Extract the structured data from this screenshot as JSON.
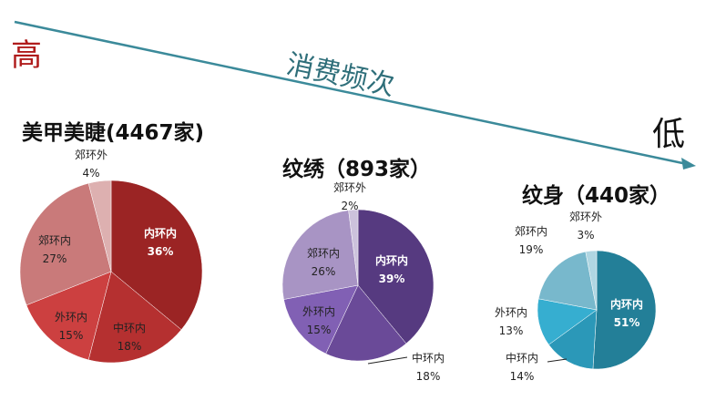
{
  "header": {
    "high_label": "高",
    "low_label": "低",
    "axis_label": "消费频次",
    "arrow_color": "#3b8a9a"
  },
  "charts": [
    {
      "title": "美甲美睫(4467家)",
      "slices": [
        {
          "label": "内环内",
          "pct": "36%",
          "color": "#9b2424"
        },
        {
          "label": "中环内",
          "pct": "18%",
          "color": "#b53030"
        },
        {
          "label": "外环内",
          "pct": "15%",
          "color": "#cc4040"
        },
        {
          "label": "郊环内",
          "pct": "27%",
          "color": "#c97a7a"
        },
        {
          "label": "郊环外",
          "pct": "4%",
          "color": "#ddb0b0"
        }
      ]
    },
    {
      "title": "纹绣（893家）",
      "slices": [
        {
          "label": "内环内",
          "pct": "39%",
          "color": "#563a80"
        },
        {
          "label": "中环内",
          "pct": "18%",
          "color": "#6a4a98"
        },
        {
          "label": "外环内",
          "pct": "15%",
          "color": "#8160b4"
        },
        {
          "label": "郊环内",
          "pct": "26%",
          "color": "#a894c4"
        },
        {
          "label": "郊环外",
          "pct": "2%",
          "color": "#ccc2dc"
        }
      ]
    },
    {
      "title": "纹身（440家）",
      "slices": [
        {
          "label": "内环内",
          "pct": "51%",
          "color": "#237f98"
        },
        {
          "label": "中环内",
          "pct": "14%",
          "color": "#2b98b8"
        },
        {
          "label": "外环内",
          "pct": "13%",
          "color": "#36aed0"
        },
        {
          "label": "郊环内",
          "pct": "19%",
          "color": "#78b8cc"
        },
        {
          "label": "郊环外",
          "pct": "3%",
          "color": "#b0d6e2"
        }
      ]
    }
  ],
  "chart_data": [
    {
      "type": "pie",
      "title": "美甲美睫(4467家)",
      "categories": [
        "内环内",
        "中环内",
        "外环内",
        "郊环内",
        "郊环外"
      ],
      "values": [
        36,
        18,
        15,
        27,
        4
      ]
    },
    {
      "type": "pie",
      "title": "纹绣（893家）",
      "categories": [
        "内环内",
        "中环内",
        "外环内",
        "郊环内",
        "郊环外"
      ],
      "values": [
        39,
        18,
        15,
        26,
        2
      ]
    },
    {
      "type": "pie",
      "title": "纹身（440家）",
      "categories": [
        "内环内",
        "中环内",
        "外环内",
        "郊环内",
        "郊环外"
      ],
      "values": [
        51,
        14,
        13,
        19,
        3
      ]
    }
  ]
}
